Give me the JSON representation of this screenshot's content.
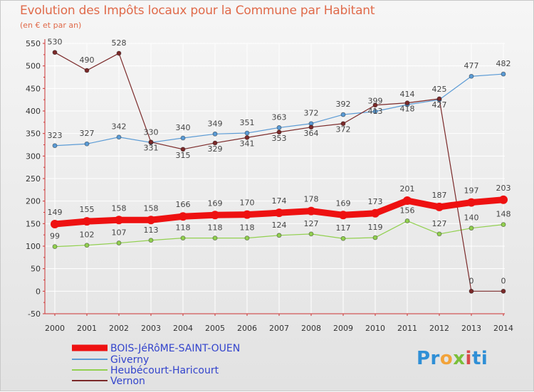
{
  "header": {
    "title": "Evolution des Impôts locaux pour la Commune par Habitant",
    "subtitle": "(en € et par an)"
  },
  "logo": {
    "text": "Proxiti",
    "parts": [
      "Pr",
      "o",
      "x",
      "i",
      "ti"
    ]
  },
  "chart_data": {
    "type": "line",
    "title": "Evolution des Impôts locaux pour la Commune par Habitant",
    "subtitle": "(en € et par an)",
    "xlabel": "",
    "ylabel": "",
    "x": [
      "2000",
      "2001",
      "2002",
      "2003",
      "2004",
      "2005",
      "2006",
      "2007",
      "2008",
      "2009",
      "2010",
      "2011",
      "2012",
      "2013",
      "2014"
    ],
    "ylim": [
      -50,
      550
    ],
    "yticks": [
      -50,
      0,
      50,
      100,
      150,
      200,
      250,
      300,
      350,
      400,
      450,
      500,
      550
    ],
    "grid": true,
    "legend_position": "bottom-left",
    "series": [
      {
        "name": "BOIS-JéRôME-SAINT-OUEN",
        "color": "#ee1111",
        "values": [
          149,
          155,
          158,
          158,
          166,
          169,
          170,
          174,
          178,
          169,
          173,
          201,
          187,
          197,
          203
        ],
        "labels": [
          "149",
          "155",
          "158",
          "158",
          "166",
          "169",
          "170",
          "174",
          "178",
          "169",
          "173",
          "201",
          "187",
          "197",
          "203"
        ]
      },
      {
        "name": "Giverny",
        "color": "#5b9bd5",
        "values": [
          323,
          327,
          342,
          330,
          340,
          349,
          351,
          363,
          372,
          392,
          399,
          414,
          425,
          477,
          482
        ],
        "labels": [
          "323",
          "327",
          "342",
          "330",
          "340",
          "349",
          "351",
          "363",
          "372",
          "392",
          "399",
          "414",
          "425",
          "477",
          "482"
        ]
      },
      {
        "name": "Heubécourt-Haricourt",
        "color": "#92d050",
        "values": [
          99,
          102,
          107,
          113,
          118,
          118,
          118,
          124,
          127,
          117,
          119,
          156,
          127,
          140,
          148
        ],
        "labels": [
          "99",
          "102",
          "107",
          "113",
          "118",
          "118",
          "118",
          "124",
          "127",
          "117",
          "119",
          "156",
          "127",
          "140",
          "148"
        ]
      },
      {
        "name": "Vernon",
        "color": "#7b2a2a",
        "values": [
          530,
          490,
          528,
          331,
          315,
          329,
          341,
          353,
          364,
          372,
          413,
          418,
          427,
          0,
          0
        ],
        "labels": [
          "530",
          "490",
          "528",
          "331",
          "315",
          "329",
          "341",
          "353",
          "364",
          "372",
          "413",
          "418",
          "427",
          "0",
          "0"
        ]
      }
    ]
  }
}
